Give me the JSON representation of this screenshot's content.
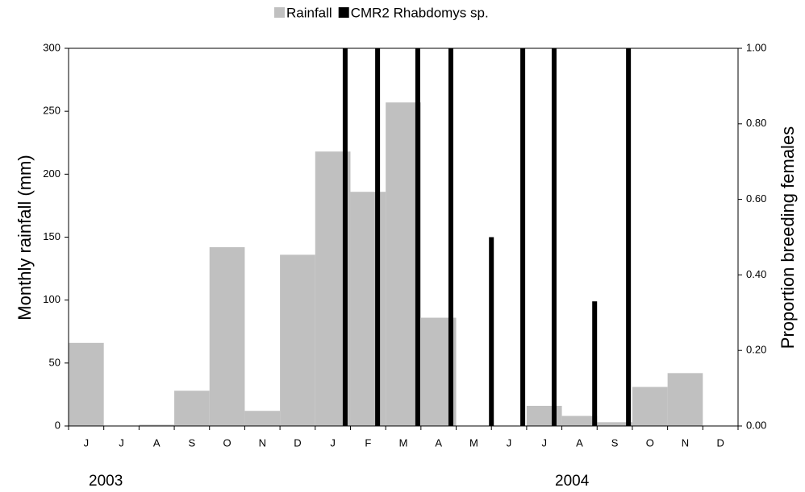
{
  "chart_data": {
    "type": "bar",
    "categories": [
      "J",
      "J",
      "A",
      "S",
      "O",
      "N",
      "D",
      "J",
      "F",
      "M",
      "A",
      "M",
      "J",
      "J",
      "A",
      "S",
      "O",
      "N",
      "D"
    ],
    "xlim": [
      0,
      19
    ],
    "ylabel": "Monthly rainfall (mm)",
    "y2label": "Proportion breeding females",
    "ylim": [
      0,
      300
    ],
    "yticks": [
      0,
      50,
      100,
      150,
      200,
      250,
      300
    ],
    "y2lim": [
      0,
      1
    ],
    "y2ticks": [
      {
        "value": 0,
        "label": "0.00"
      },
      {
        "value": 0.2,
        "label": "0.20"
      },
      {
        "value": 0.4,
        "label": "0.40"
      },
      {
        "value": 0.6,
        "label": "0.60"
      },
      {
        "value": 0.8,
        "label": "0.80"
      },
      {
        "value": 1,
        "label": "1.00"
      }
    ],
    "annotations": [
      "2003",
      "2004"
    ],
    "grid": false,
    "series": [
      {
        "name": "Rainfall",
        "color": "#c0c0c0",
        "values": [
          66,
          0,
          1,
          28,
          142,
          12,
          136,
          218,
          186,
          257,
          86,
          0,
          0,
          16,
          8,
          3,
          31,
          42,
          0
        ]
      },
      {
        "name": "CMR2 Rhabdomys sp.",
        "color": "#000000",
        "axis": "y2",
        "x": [
          7.85,
          8.77,
          9.91,
          10.85,
          12.0,
          12.89,
          13.78,
          14.93,
          15.89
        ],
        "values": [
          1,
          1,
          1,
          1,
          0.5,
          1,
          1,
          0.33,
          1
        ]
      }
    ]
  }
}
